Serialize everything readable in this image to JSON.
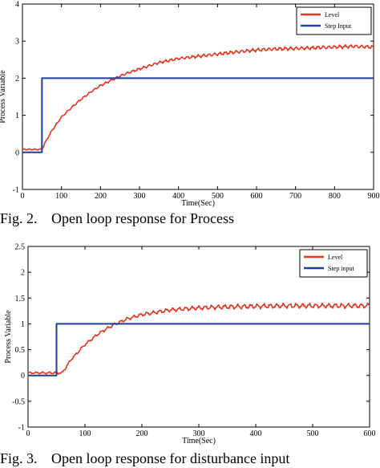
{
  "captions": [
    {
      "number": "Fig. 2.",
      "text": "Open loop response for Process"
    },
    {
      "number": "Fig. 3.",
      "text": "Open loop response for disturbance input"
    }
  ],
  "chart_data": [
    {
      "type": "line",
      "title": "",
      "xlabel": "Time(Sec)",
      "ylabel": "Process Variable",
      "xlim": [
        0,
        900
      ],
      "ylim": [
        -1,
        4
      ],
      "xticks": [
        0,
        100,
        200,
        300,
        400,
        500,
        600,
        700,
        800,
        900
      ],
      "yticks": [
        -1,
        0,
        1,
        2,
        3,
        4
      ],
      "grid": false,
      "legend": "top-right",
      "series": [
        {
          "name": "Level",
          "color": "#e8321e",
          "x": [
            0,
            25,
            50,
            60,
            75,
            100,
            125,
            150,
            175,
            200,
            225,
            250,
            275,
            300,
            350,
            400,
            450,
            500,
            550,
            600,
            650,
            700,
            750,
            800,
            850,
            900
          ],
          "y": [
            0.08,
            0.08,
            0.08,
            0.3,
            0.58,
            0.95,
            1.2,
            1.43,
            1.63,
            1.8,
            1.93,
            2.06,
            2.16,
            2.25,
            2.42,
            2.53,
            2.59,
            2.65,
            2.71,
            2.76,
            2.79,
            2.8,
            2.82,
            2.84,
            2.86,
            2.84
          ]
        },
        {
          "name": "Step Input",
          "color": "#1f3f9a",
          "x": [
            0,
            50,
            50,
            900
          ],
          "y": [
            0,
            0,
            2,
            2
          ]
        }
      ]
    },
    {
      "type": "line",
      "title": "",
      "xlabel": "Time(Sec)",
      "ylabel": "Process Variable",
      "xlim": [
        0,
        600
      ],
      "ylim": [
        -1,
        2.5
      ],
      "xticks": [
        0,
        100,
        200,
        300,
        400,
        500,
        600
      ],
      "yticks": [
        -1,
        -0.5,
        0,
        0.5,
        1,
        1.5,
        2,
        2.5
      ],
      "grid": false,
      "legend": "top-right",
      "series": [
        {
          "name": "Level",
          "color": "#e8321e",
          "x": [
            0,
            25,
            50,
            60,
            75,
            100,
            125,
            150,
            175,
            200,
            250,
            300,
            350,
            400,
            450,
            500,
            550,
            600
          ],
          "y": [
            0.05,
            0.05,
            0.05,
            0.05,
            0.3,
            0.6,
            0.82,
            0.98,
            1.1,
            1.18,
            1.27,
            1.31,
            1.33,
            1.34,
            1.35,
            1.35,
            1.35,
            1.35
          ]
        },
        {
          "name": "Step input",
          "color": "#1f3f9a",
          "x": [
            0,
            50,
            50,
            600
          ],
          "y": [
            0,
            0,
            1,
            1
          ]
        }
      ]
    }
  ]
}
